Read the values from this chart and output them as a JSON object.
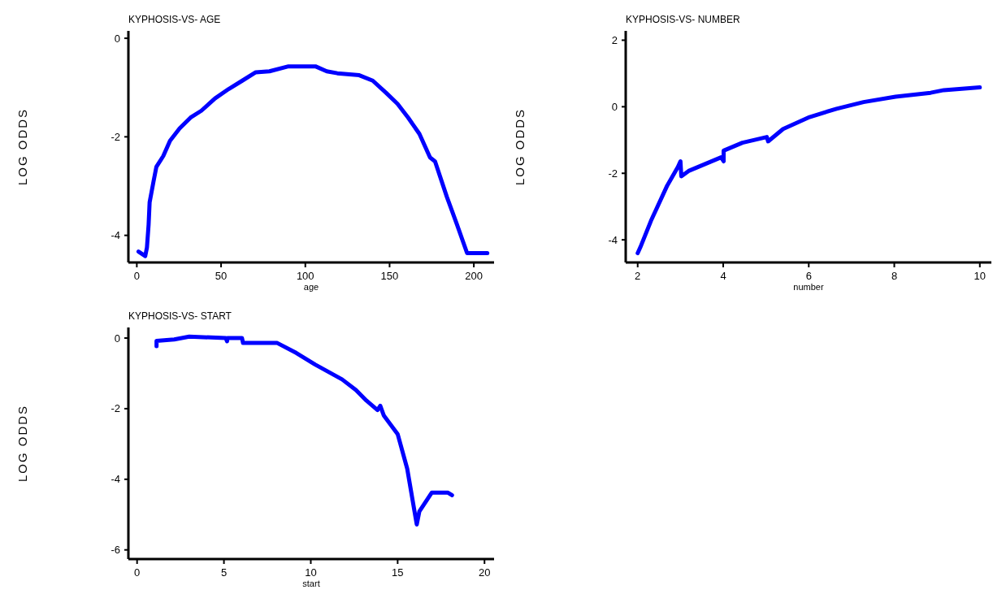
{
  "chart_data": [
    {
      "type": "line",
      "title": "KYPHOSIS-VS- AGE",
      "xlabel": "age",
      "ylabel": "LOG ODDS",
      "xlim": [
        -5,
        212
      ],
      "ylim": [
        -4.55,
        0.15
      ],
      "xticks": [
        0,
        50,
        100,
        150,
        200
      ],
      "yticks": [
        0,
        -2,
        -4
      ],
      "grid": false,
      "marker": "none",
      "line_style": "solid",
      "series": [
        {
          "color": "#0000ff",
          "x": [
            1,
            5,
            6,
            7,
            7.6,
            10,
            11.6,
            15.7,
            19.7,
            25.4,
            31.9,
            38.3,
            46.4,
            54.5,
            62.6,
            70.6,
            78.7,
            90,
            106,
            112.7,
            119,
            132,
            140,
            148,
            154.7,
            161,
            167.7,
            174,
            177,
            184,
            190,
            196,
            208
          ],
          "values": [
            -4.33,
            -4.42,
            -4.25,
            -3.78,
            -3.33,
            -2.89,
            -2.61,
            -2.39,
            -2.08,
            -1.83,
            -1.61,
            -1.47,
            -1.22,
            -1.03,
            -0.86,
            -0.69,
            -0.67,
            -0.57,
            -0.57,
            -0.67,
            -0.71,
            -0.75,
            -0.86,
            -1.11,
            -1.33,
            -1.61,
            -1.94,
            -2.42,
            -2.5,
            -3.22,
            -3.78,
            -4.36,
            -4.36
          ]
        }
      ]
    },
    {
      "type": "line",
      "title": "KYPHOSIS-VS- NUMBER",
      "xlabel": "number",
      "ylabel": "LOG ODDS",
      "xlim": [
        1.72,
        10.27
      ],
      "ylim": [
        -4.68,
        2.28
      ],
      "xticks": [
        2,
        4,
        6,
        8,
        10
      ],
      "yticks": [
        2,
        0,
        -2,
        -4
      ],
      "grid": false,
      "marker": "none",
      "line_style": "solid",
      "series": [
        {
          "color": "#0000ff",
          "x": [
            2,
            2.06,
            2.31,
            2.69,
            2.94,
            3,
            3.02,
            3.19,
            3.95,
            4.01,
            4.01,
            4.45,
            5.02,
            5.05,
            5.4,
            6.02,
            6.65,
            7.28,
            8.03,
            8.85,
            9.16,
            10
          ],
          "values": [
            -4.4,
            -4.23,
            -3.43,
            -2.37,
            -1.81,
            -1.64,
            -2.09,
            -1.93,
            -1.52,
            -1.64,
            -1.32,
            -1.08,
            -0.91,
            -1.04,
            -0.67,
            -0.31,
            -0.06,
            0.14,
            0.3,
            0.42,
            0.5,
            0.58
          ]
        }
      ]
    },
    {
      "type": "line",
      "title": "KYPHOSIS-VS- START",
      "xlabel": "start",
      "ylabel": "LOG ODDS",
      "xlim": [
        -0.5,
        20.55
      ],
      "ylim": [
        -6.26,
        0.3
      ],
      "xticks": [
        0,
        5,
        10,
        15,
        20
      ],
      "yticks": [
        0,
        -2,
        -4,
        -6
      ],
      "grid": false,
      "marker": "none",
      "line_style": "solid",
      "series": [
        {
          "color": "#0000ff",
          "x": [
            1.12,
            1.12,
            2.14,
            3,
            5.1,
            5.18,
            5.2,
            6.04,
            6.1,
            8.07,
            9.16,
            10.25,
            11.8,
            12.6,
            13.2,
            13.84,
            14,
            14.2,
            15,
            15.55,
            16.1,
            16.25,
            16.96,
            17.9,
            18.13
          ],
          "values": [
            -0.23,
            -0.08,
            -0.04,
            0.04,
            0,
            -0.09,
            0,
            0,
            -0.14,
            -0.14,
            -0.42,
            -0.75,
            -1.17,
            -1.47,
            -1.77,
            -2.04,
            -1.92,
            -2.19,
            -2.72,
            -3.7,
            -5.28,
            -4.91,
            -4.38,
            -4.38,
            -4.45
          ]
        }
      ]
    }
  ]
}
